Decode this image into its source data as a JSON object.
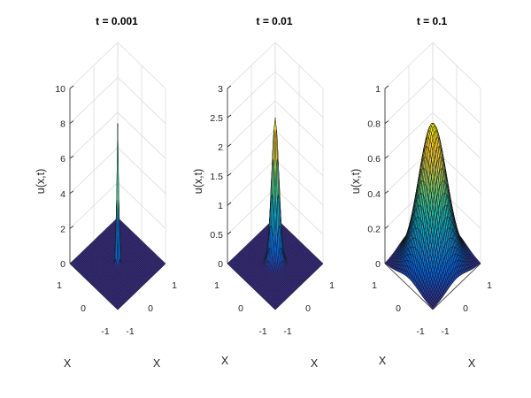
{
  "chart_data": [
    {
      "type": "surface",
      "title": "t = 0.001",
      "zlabel": "u(x,t)",
      "xlabel": "X",
      "ylabel": "X",
      "x_range": [
        -1,
        1
      ],
      "y_range": [
        -1,
        1
      ],
      "zlim": [
        0,
        10
      ],
      "z_ticks": [
        "0",
        "2",
        "4",
        "6",
        "8",
        "10"
      ],
      "x_ticks": [
        "-1",
        "0",
        "1"
      ],
      "y_ticks": [
        "-1",
        "0",
        "1"
      ],
      "t": 0.001,
      "peak": 8,
      "colormap": "parula"
    },
    {
      "type": "surface",
      "title": "t = 0.01",
      "zlabel": "u(x,t)",
      "xlabel": "X",
      "ylabel": "X",
      "x_range": [
        -1,
        1
      ],
      "y_range": [
        -1,
        1
      ],
      "zlim": [
        0,
        3
      ],
      "z_ticks": [
        "0",
        "0.5",
        "1",
        "1.5",
        "2",
        "2.5",
        "3"
      ],
      "x_ticks": [
        "-1",
        "0",
        "1"
      ],
      "y_ticks": [
        "-1",
        "0",
        "1"
      ],
      "t": 0.01,
      "peak": 2.5,
      "colormap": "parula"
    },
    {
      "type": "surface",
      "title": "t = 0.1",
      "zlabel": "u(x,t)",
      "xlabel": "X",
      "ylabel": "X",
      "x_range": [
        -1,
        1
      ],
      "y_range": [
        -1,
        1
      ],
      "zlim": [
        0,
        1
      ],
      "z_ticks": [
        "0",
        "0.2",
        "0.4",
        "0.6",
        "0.8",
        "1"
      ],
      "x_ticks": [
        "-1",
        "0",
        "1"
      ],
      "y_ticks": [
        "-1",
        "0",
        "1"
      ],
      "t": 0.1,
      "peak": 0.8,
      "colormap": "parula"
    }
  ]
}
